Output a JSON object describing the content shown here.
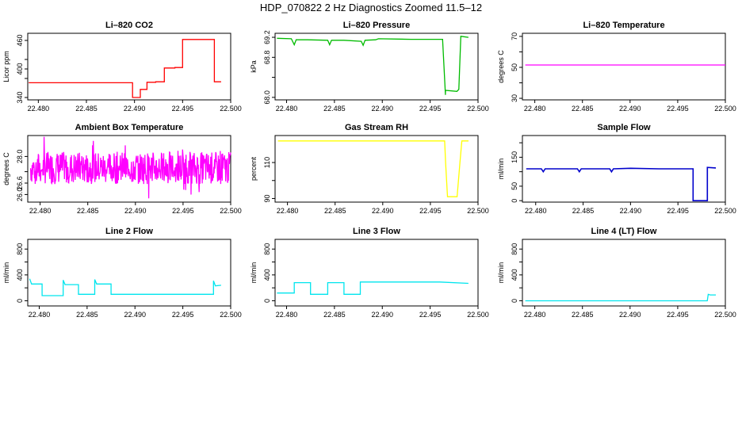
{
  "page_title": "HDP_070822  2 Hz Diagnostics Zoomed 11.5–12",
  "chart_data": [
    {
      "type": "line",
      "title": "Li–820 CO2",
      "ylabel": "Licor ppm",
      "xlim": [
        22.4789,
        22.5
      ],
      "ylim": [
        335,
        475
      ],
      "xticks": [
        "22.480",
        "22.485",
        "22.490",
        "22.495",
        "22.500"
      ],
      "yticks": [
        "340",
        "400",
        "460"
      ],
      "yticks_minor": [
        "380",
        "420"
      ],
      "color": "#ff0000",
      "series": [
        {
          "x": [
            22.479,
            22.4898,
            22.4898,
            22.4906,
            22.4906,
            22.4913,
            22.4913,
            22.4922,
            22.4922,
            22.4931,
            22.4931,
            22.4942,
            22.4942,
            22.495,
            22.495,
            22.4983,
            22.4983,
            22.499
          ],
          "y": [
            371,
            371,
            340,
            340,
            357,
            357,
            372,
            372,
            373,
            373,
            402,
            402,
            403,
            403,
            462,
            462,
            373,
            373
          ]
        }
      ]
    },
    {
      "type": "line",
      "title": "Li–820 Pressure",
      "ylabel": "kPa",
      "xlim": [
        22.4788,
        22.5
      ],
      "ylim": [
        67.95,
        69.28
      ],
      "xticks": [
        "22.480",
        "22.485",
        "22.490",
        "22.495",
        "22.500"
      ],
      "yticks": [
        "68.0",
        "68.8",
        "69.2"
      ],
      "yticks_minor": [
        "68.4"
      ],
      "color": "#00bb00",
      "series": [
        {
          "x": [
            22.479,
            22.4805,
            22.4808,
            22.481,
            22.4822,
            22.4843,
            22.4845,
            22.4847,
            22.486,
            22.4878,
            22.488,
            22.4882,
            22.4893,
            22.4896,
            22.493,
            22.4963,
            22.4966,
            22.4966,
            22.4978,
            22.498,
            22.4982,
            22.499
          ],
          "y": [
            69.18,
            69.17,
            69.05,
            69.15,
            69.15,
            69.14,
            69.05,
            69.14,
            69.14,
            69.12,
            69.04,
            69.14,
            69.15,
            69.17,
            69.16,
            69.16,
            68.05,
            68.14,
            68.12,
            68.16,
            69.22,
            69.2
          ]
        }
      ]
    },
    {
      "type": "line",
      "title": "Li–820 Temperature",
      "ylabel": "degrees C",
      "xlim": [
        22.4787,
        22.5
      ],
      "ylim": [
        29,
        72
      ],
      "xticks": [
        "22.480",
        "22.485",
        "22.490",
        "22.495",
        "22.500"
      ],
      "yticks": [
        "30",
        "50",
        "70"
      ],
      "yticks_minor": [
        "40",
        "60"
      ],
      "color": "#ff00ff",
      "series": [
        {
          "x": [
            22.479,
            22.5
          ],
          "y": [
            51.5,
            51.5
          ]
        }
      ]
    },
    {
      "type": "line",
      "title": "Ambient Box Temperature",
      "ylabel": "degrees C",
      "xlim": [
        22.4787,
        22.5
      ],
      "ylim": [
        25.6,
        29.1
      ],
      "xticks": [
        "22.480",
        "22.485",
        "22.490",
        "22.495",
        "22.500"
      ],
      "yticks": [
        "26.0",
        "26.6",
        "28.0"
      ],
      "yticks_minor": [
        "27.2"
      ],
      "color": "#ff00ff",
      "series": [
        {
          "x": [
            22.479,
            22.5
          ],
          "y": [
            27.4,
            27.4
          ]
        }
      ]
    },
    {
      "type": "line",
      "title": "Gas Stream RH",
      "ylabel": "percent",
      "xlim": [
        22.4787,
        22.5
      ],
      "ylim": [
        88,
        125
      ],
      "xticks": [
        "22.480",
        "22.485",
        "22.490",
        "22.495",
        "22.500"
      ],
      "yticks": [
        "90",
        "110"
      ],
      "yticks_minor": [
        "100"
      ],
      "color": "#ffff00",
      "series": [
        {
          "x": [
            22.479,
            22.4965,
            22.4966,
            22.4968,
            22.4978,
            22.4981,
            22.4983,
            22.499
          ],
          "y": [
            122,
            122,
            110,
            91,
            91,
            110,
            122,
            122
          ]
        }
      ]
    },
    {
      "type": "line",
      "title": "Sample Flow",
      "ylabel": "ml/min",
      "xlim": [
        22.4786,
        22.5
      ],
      "ylim": [
        -5,
        225
      ],
      "xticks": [
        "22.480",
        "22.485",
        "22.490",
        "22.495",
        "22.500"
      ],
      "yticks": [
        "0",
        "50",
        "150"
      ],
      "yticks_minor": [
        "100",
        "200"
      ],
      "color": "#0000cc",
      "series": [
        {
          "x": [
            22.479,
            22.4806,
            22.4808,
            22.481,
            22.4844,
            22.4846,
            22.4848,
            22.4878,
            22.488,
            22.4882,
            22.49,
            22.493,
            22.4966,
            22.4966,
            22.4981,
            22.4981,
            22.499
          ],
          "y": [
            110,
            110,
            100,
            110,
            110,
            100,
            110,
            110,
            100,
            110,
            112,
            110,
            110,
            0,
            0,
            115,
            113
          ]
        }
      ]
    },
    {
      "type": "line",
      "title": "Line 2 Flow",
      "ylabel": "ml/min",
      "xlim": [
        22.4788,
        22.5
      ],
      "ylim": [
        -80,
        950
      ],
      "xticks": [
        "22.480",
        "22.485",
        "22.490",
        "22.495",
        "22.500"
      ],
      "yticks": [
        "0",
        "400",
        "800"
      ],
      "yticks_minor": [
        "200",
        "600"
      ],
      "color": "#00e5ee",
      "series": [
        {
          "x": [
            22.479,
            22.4792,
            22.4803,
            22.4803,
            22.4825,
            22.4825,
            22.4827,
            22.4841,
            22.4841,
            22.4858,
            22.4858,
            22.486,
            22.4875,
            22.4875,
            22.4885,
            22.4982,
            22.4982,
            22.4984,
            22.499
          ],
          "y": [
            340,
            260,
            260,
            80,
            80,
            320,
            250,
            250,
            100,
            100,
            330,
            260,
            260,
            100,
            100,
            100,
            310,
            230,
            240
          ]
        }
      ]
    },
    {
      "type": "line",
      "title": "Line 3 Flow",
      "ylabel": "ml/min",
      "xlim": [
        22.4788,
        22.5
      ],
      "ylim": [
        -80,
        950
      ],
      "xticks": [
        "22.480",
        "22.485",
        "22.490",
        "22.495",
        "22.500"
      ],
      "yticks": [
        "0",
        "400",
        "800"
      ],
      "yticks_minor": [
        "200",
        "600"
      ],
      "color": "#00e5ee",
      "series": [
        {
          "x": [
            22.479,
            22.4808,
            22.4808,
            22.4825,
            22.4825,
            22.4843,
            22.4843,
            22.486,
            22.486,
            22.4877,
            22.4877,
            22.496,
            22.499
          ],
          "y": [
            120,
            120,
            280,
            280,
            100,
            100,
            280,
            280,
            100,
            100,
            290,
            290,
            270
          ]
        }
      ]
    },
    {
      "type": "line",
      "title": "Line 4 (LT) Flow",
      "ylabel": "ml/min",
      "xlim": [
        22.4787,
        22.5
      ],
      "ylim": [
        -80,
        950
      ],
      "xticks": [
        "22.480",
        "22.485",
        "22.490",
        "22.495",
        "22.500"
      ],
      "yticks": [
        "0",
        "400",
        "800"
      ],
      "yticks_minor": [
        "200",
        "600"
      ],
      "color": "#00e5ee",
      "series": [
        {
          "x": [
            22.479,
            22.4981,
            22.4982,
            22.4984,
            22.499
          ],
          "y": [
            0,
            0,
            100,
            90,
            90
          ]
        }
      ]
    }
  ]
}
